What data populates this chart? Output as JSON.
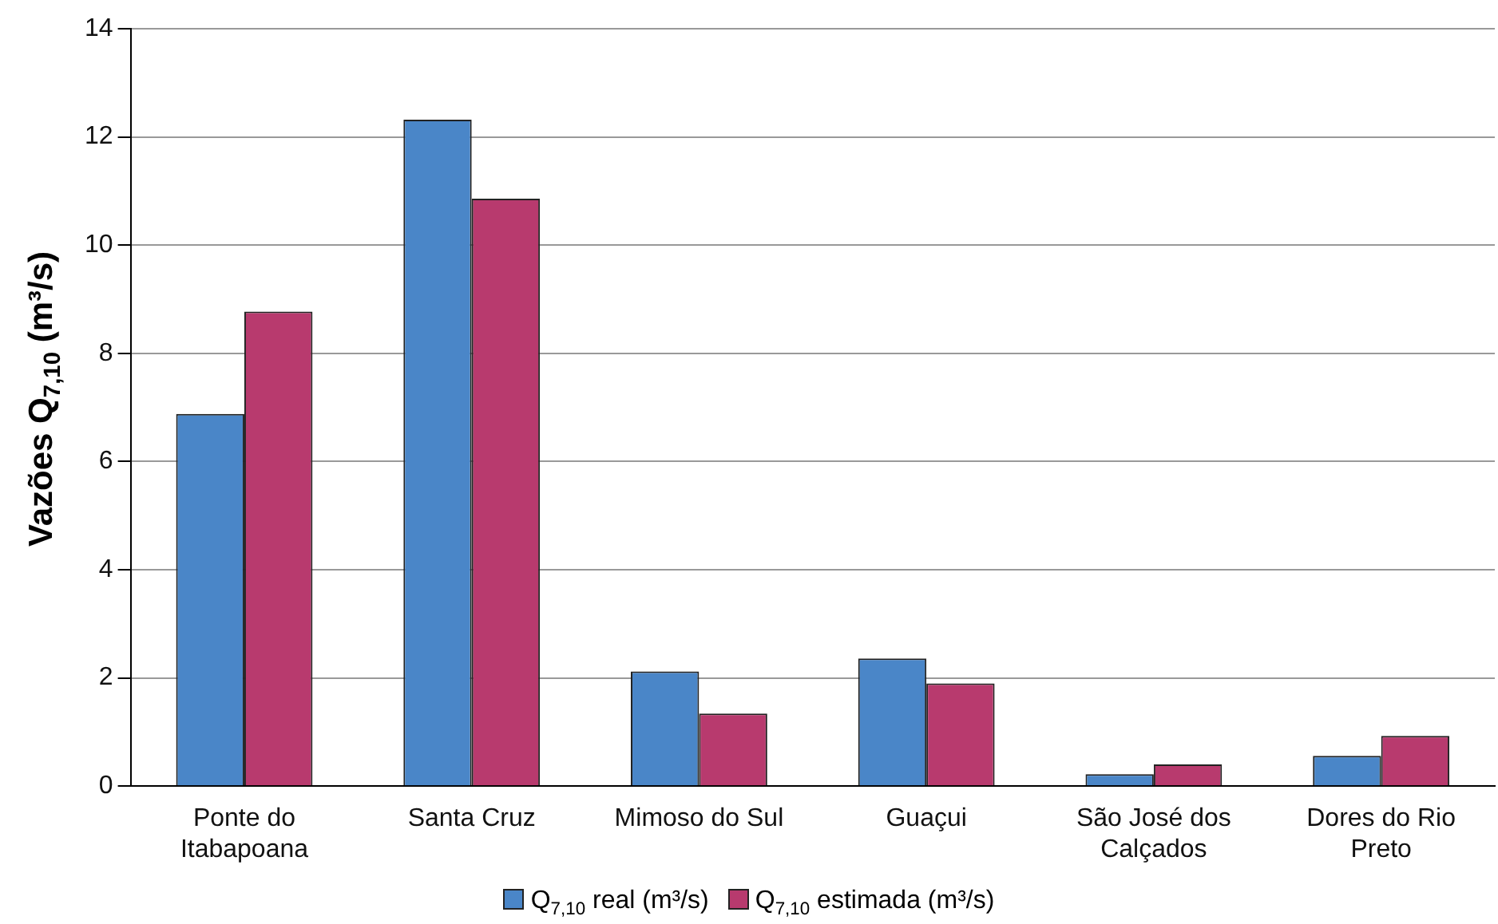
{
  "chart_data": {
    "type": "bar",
    "ylabel": "Vazões Q$_{7,10}$ (m³/s)",
    "categories": [
      "Ponte do Itabapoana",
      "Santa Cruz",
      "Mimoso do Sul",
      "Guaçui",
      "São José dos Calçados",
      "Dores do Rio Preto"
    ],
    "series": [
      {
        "name": "Q$_{7,10}$ real (m³/s)",
        "color": "#4a86c8",
        "values": [
          6.88,
          12.32,
          2.12,
          2.36,
          0.22,
          0.56
        ]
      },
      {
        "name": "Q$_{7,10}$ estimada (m³/s)",
        "color": "#b83a6e",
        "values": [
          8.77,
          10.86,
          1.34,
          1.9,
          0.4,
          0.93
        ]
      }
    ],
    "ylim": [
      0,
      14
    ],
    "yticks": [
      0,
      2,
      4,
      6,
      8,
      10,
      12,
      14
    ],
    "grid": "y",
    "legend": "bottom"
  }
}
